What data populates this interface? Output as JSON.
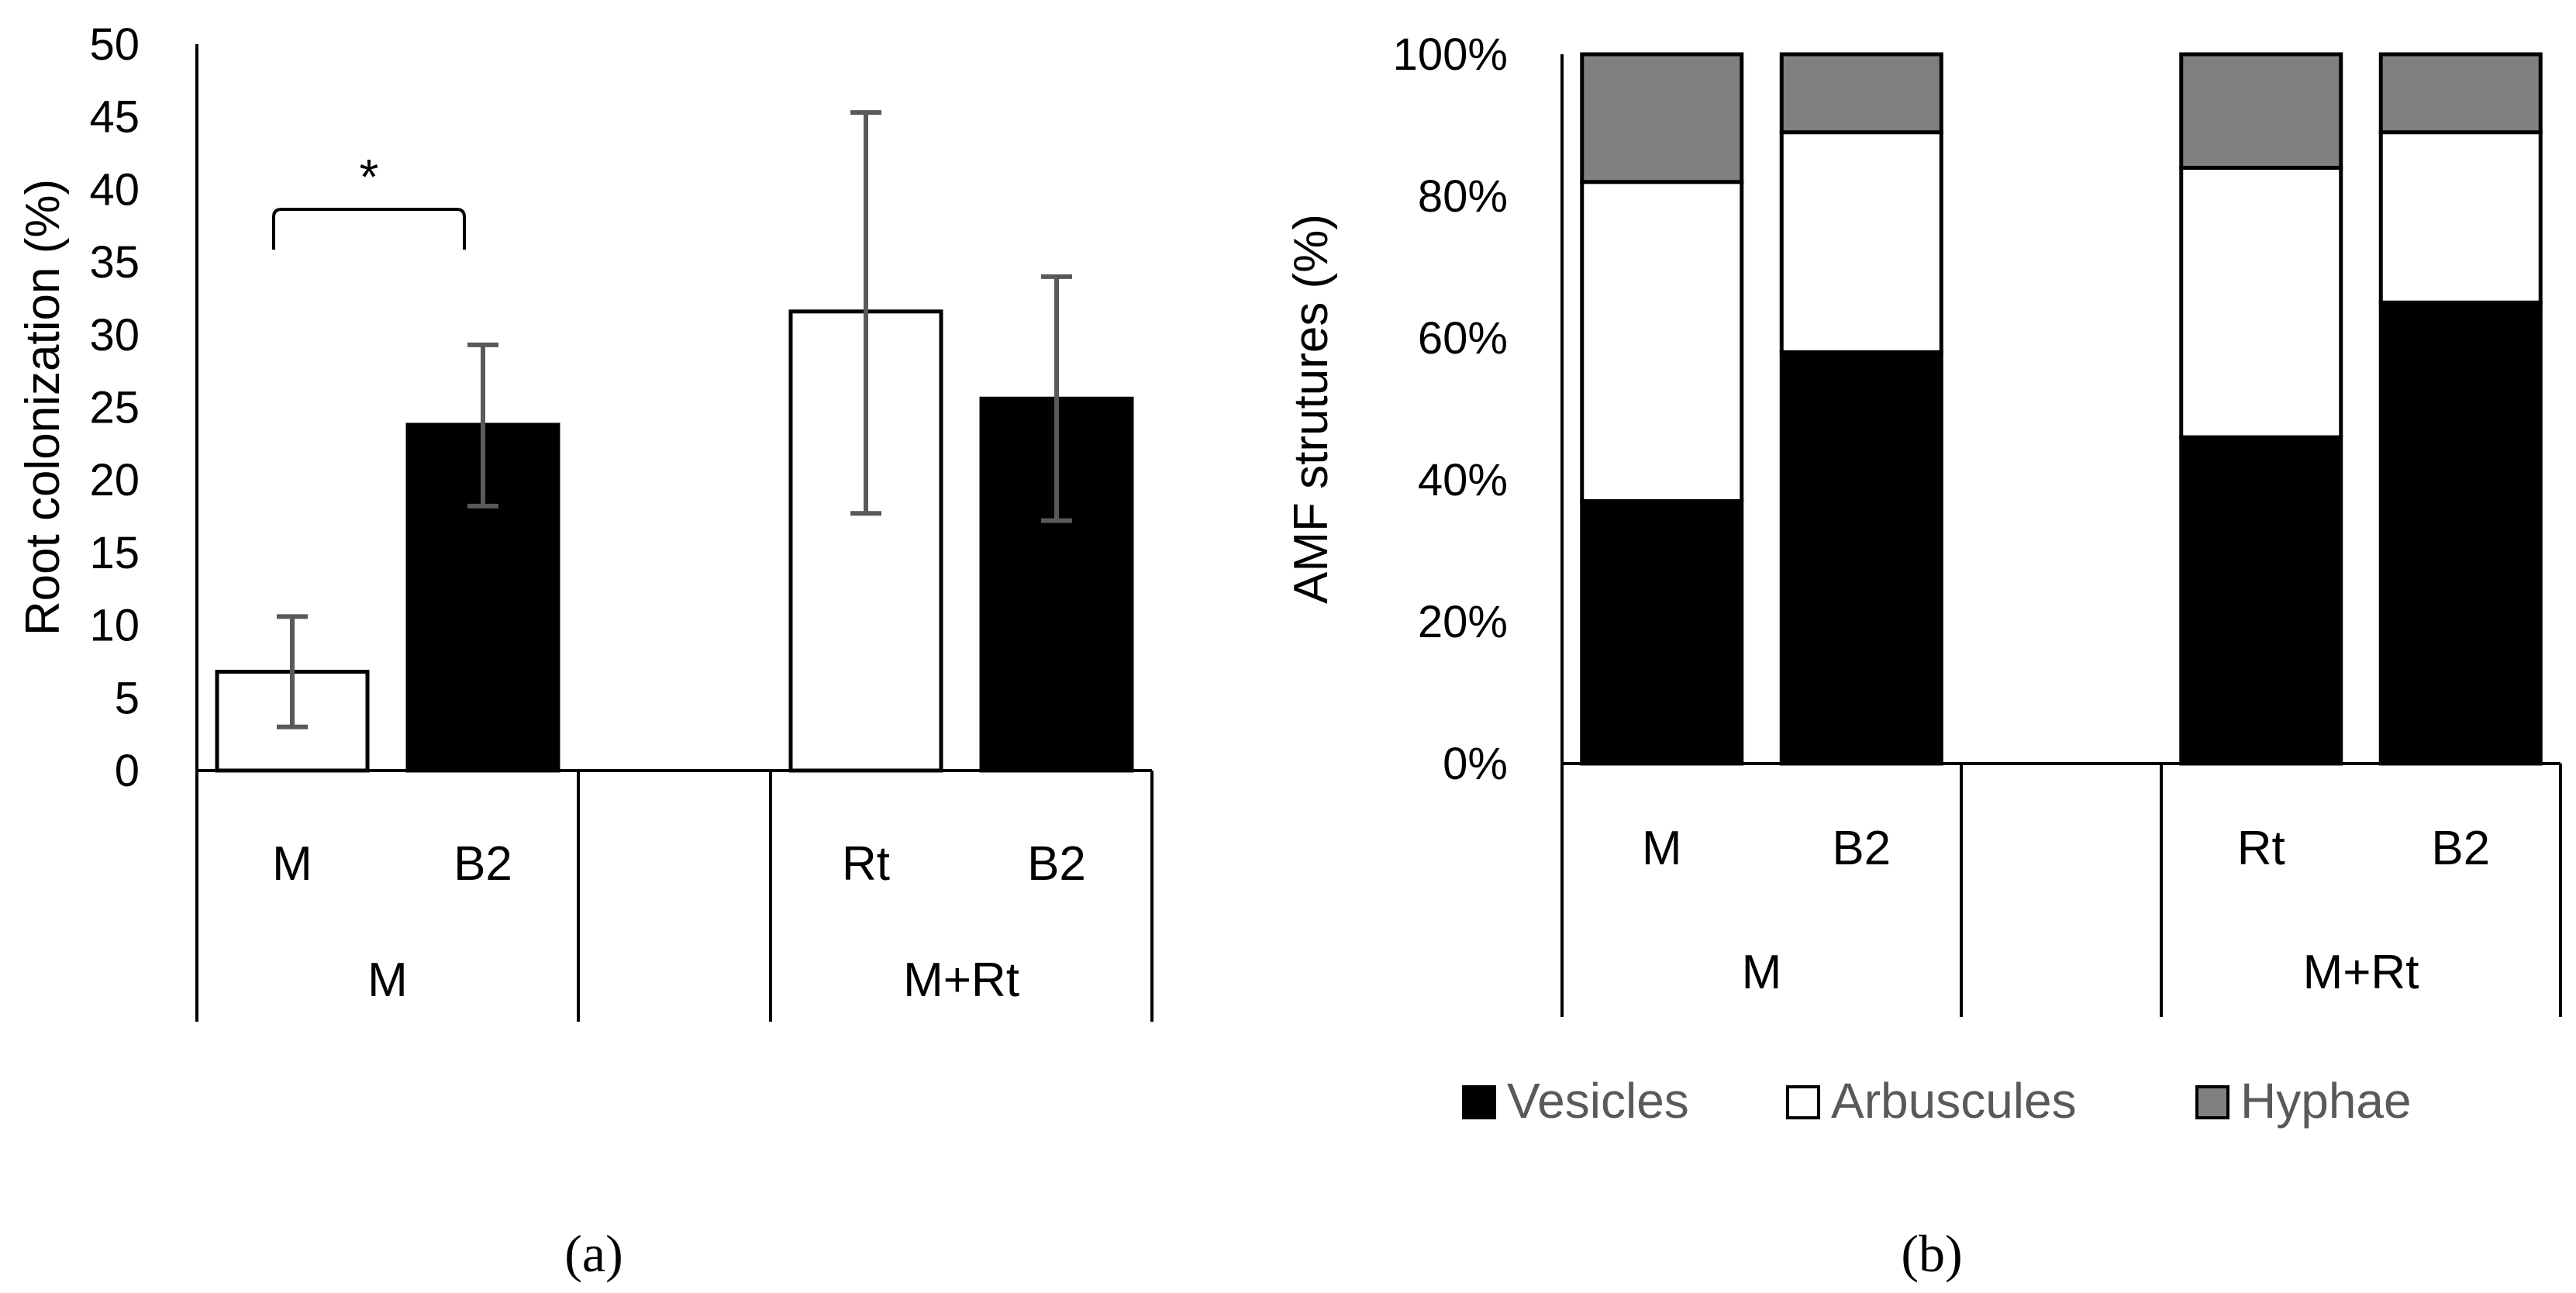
{
  "chart_data": [
    {
      "type": "bar",
      "panel_label": "(a)",
      "ylabel": "Root colonization (%)",
      "ylim": [
        0,
        50
      ],
      "yticks": [
        "0",
        "5",
        "10",
        "15",
        "20",
        "25",
        "30",
        "35",
        "40",
        "45",
        "50"
      ],
      "groups": [
        {
          "label": "M",
          "bars": [
            {
              "label": "M",
              "value": 6.8,
              "error_low": 3.0,
              "error_high": 10.6,
              "fill": "#ffffff"
            },
            {
              "label": "B2",
              "value": 23.8,
              "error_low": 18.2,
              "error_high": 29.3,
              "fill": "#000000"
            }
          ]
        },
        {
          "label": "",
          "bars": []
        },
        {
          "label": "M+Rt",
          "bars": [
            {
              "label": "Rt",
              "value": 31.6,
              "error_low": 17.7,
              "error_high": 45.3,
              "fill": "#ffffff"
            },
            {
              "label": "B2",
              "value": 25.6,
              "error_low": 17.2,
              "error_high": 34.0,
              "fill": "#000000"
            }
          ]
        }
      ],
      "annotations": [
        {
          "text": "*",
          "between": [
            "M",
            "B2"
          ],
          "group": "M"
        }
      ]
    },
    {
      "type": "stacked_bar",
      "panel_label": "(b)",
      "ylabel": "AMF strutures (%)",
      "ylim": [
        0,
        100
      ],
      "yticks": [
        "0%",
        "20%",
        "40%",
        "60%",
        "80%",
        "100%"
      ],
      "series": [
        {
          "name": "Vesicles",
          "color": "#000000"
        },
        {
          "name": "Arbuscules",
          "color": "#ffffff"
        },
        {
          "name": "Hyphae",
          "color": "#808080"
        }
      ],
      "groups": [
        {
          "label": "M",
          "bars": [
            {
              "label": "M",
              "values": [
                37,
                45,
                18
              ]
            },
            {
              "label": "B2",
              "values": [
                58,
                31,
                11
              ]
            }
          ]
        },
        {
          "label": "",
          "bars": []
        },
        {
          "label": "M+Rt",
          "bars": [
            {
              "label": "Rt",
              "values": [
                46,
                38,
                16
              ]
            },
            {
              "label": "B2",
              "values": [
                65,
                24,
                11
              ]
            }
          ]
        }
      ],
      "legend_position": "bottom"
    }
  ]
}
